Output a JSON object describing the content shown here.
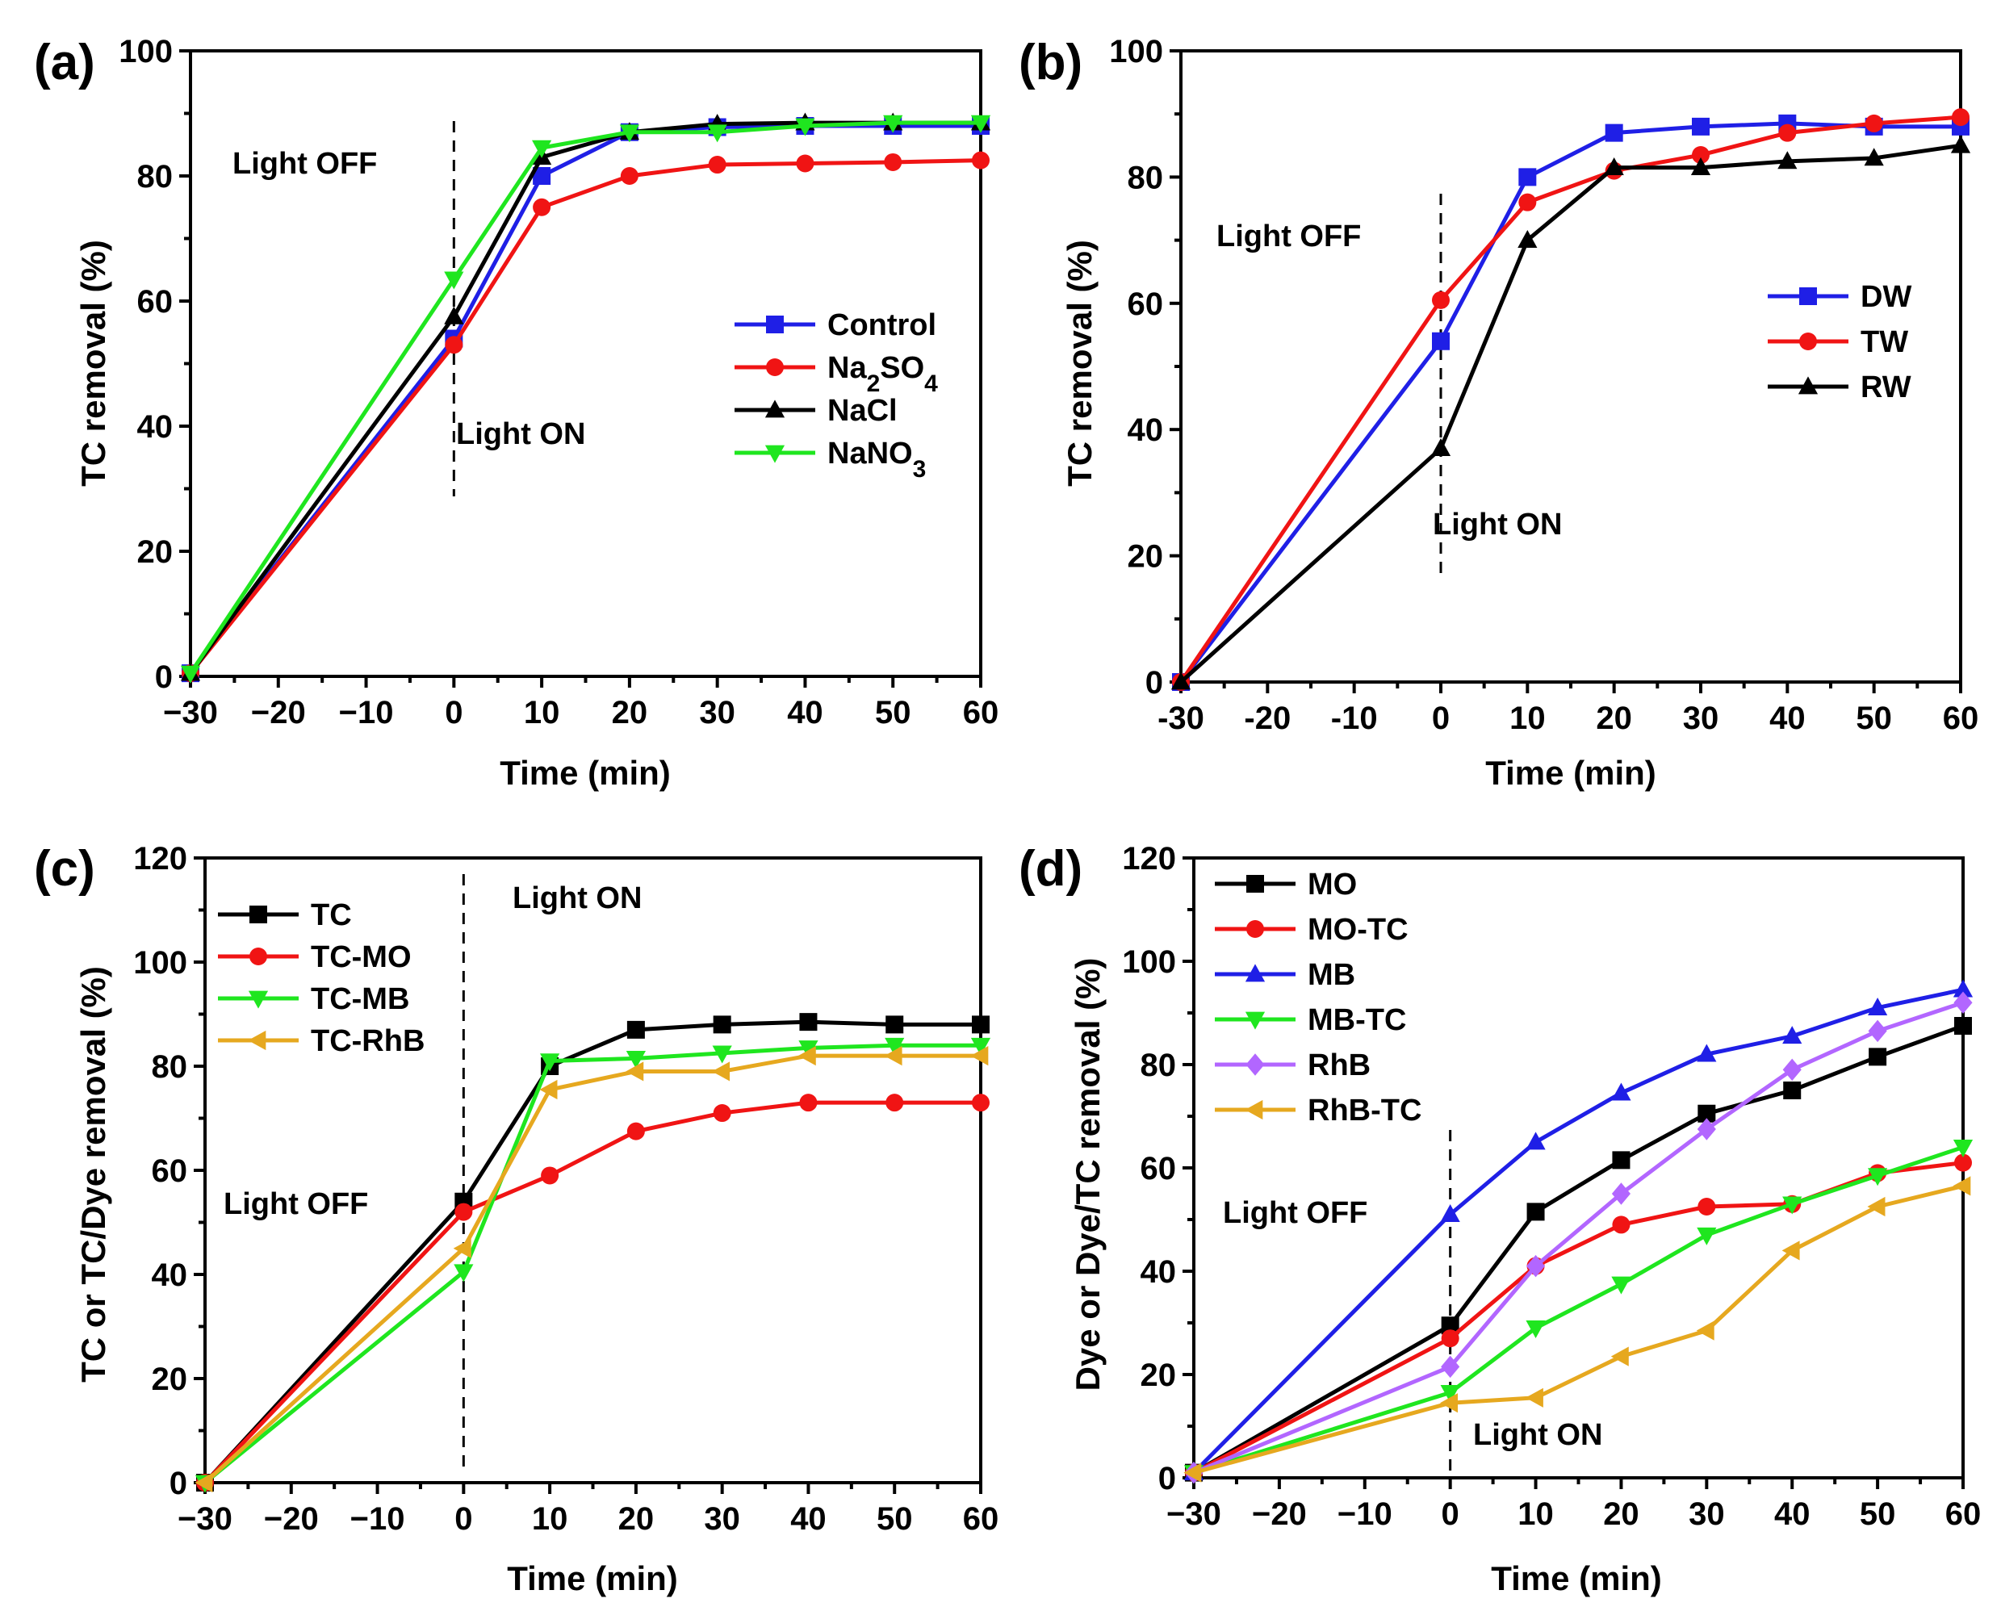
{
  "chart_data": [
    {
      "type": "line",
      "panel": "(a)",
      "xlabel": "Time (min)",
      "ylabel": "TC removal (%)",
      "xlim": [
        -30,
        60
      ],
      "ylim": [
        0,
        100
      ],
      "xticks": [
        "−30",
        "−20",
        "−10",
        "0",
        "10",
        "20",
        "30",
        "40",
        "50",
        "60"
      ],
      "yticks": [
        "0",
        "20",
        "40",
        "60",
        "80",
        "100"
      ],
      "x": [
        -30,
        0,
        10,
        20,
        30,
        40,
        50,
        60
      ],
      "legend_position": "center-right",
      "series": [
        {
          "name": "Control",
          "label_main": "Control",
          "label_sub": "",
          "label_tail": "",
          "label_sub2": "",
          "color": "#1f1fe6",
          "marker": "square",
          "values": [
            0.5,
            54.0,
            80.0,
            87.0,
            87.8,
            88.0,
            88.0,
            88.0
          ]
        },
        {
          "name": "Na2SO4",
          "label_main": "Na",
          "label_sub": "2",
          "label_tail": "SO",
          "label_sub2": "4",
          "color": "#f01414",
          "marker": "circle",
          "values": [
            0.5,
            53.0,
            75.0,
            80.0,
            81.8,
            82.0,
            82.2,
            82.5
          ]
        },
        {
          "name": "NaCl",
          "label_main": "NaCl",
          "label_sub": "",
          "label_tail": "",
          "label_sub2": "",
          "color": "#000000",
          "marker": "triangle-up",
          "values": [
            0.5,
            57.5,
            83.0,
            87.0,
            88.3,
            88.5,
            88.5,
            88.5
          ]
        },
        {
          "name": "NaNO3",
          "label_main": "NaNO",
          "label_sub": "3",
          "label_tail": "",
          "label_sub2": "",
          "color": "#1fe61f",
          "marker": "triangle-down",
          "values": [
            0.5,
            63.5,
            84.5,
            87.0,
            87.0,
            88.0,
            88.5,
            88.5
          ]
        }
      ],
      "annotations": {
        "light_off": "Light OFF",
        "light_on": "Light ON"
      }
    },
    {
      "type": "line",
      "panel": "(b)",
      "xlabel": "Time (min)",
      "ylabel": "TC removal (%)",
      "xlim": [
        -30,
        60
      ],
      "ylim": [
        0,
        100
      ],
      "xticks": [
        "-30",
        "-20",
        "-10",
        "0",
        "10",
        "20",
        "30",
        "40",
        "50",
        "60"
      ],
      "yticks": [
        "0",
        "20",
        "40",
        "60",
        "80",
        "100"
      ],
      "x": [
        -30,
        0,
        10,
        20,
        30,
        40,
        50,
        60
      ],
      "legend_position": "center-right",
      "series": [
        {
          "name": "DW",
          "label_main": "DW",
          "label_sub": "",
          "label_tail": "",
          "label_sub2": "",
          "color": "#1f1fe6",
          "marker": "square",
          "values": [
            0,
            54.0,
            80.0,
            87.0,
            88.0,
            88.5,
            88.0,
            88.0
          ]
        },
        {
          "name": "TW",
          "label_main": "TW",
          "label_sub": "",
          "label_tail": "",
          "label_sub2": "",
          "color": "#f01414",
          "marker": "circle",
          "values": [
            0,
            60.5,
            76.0,
            81.0,
            83.5,
            87.0,
            88.5,
            89.5
          ]
        },
        {
          "name": "RW",
          "label_main": "RW",
          "label_sub": "",
          "label_tail": "",
          "label_sub2": "",
          "color": "#000000",
          "marker": "triangle-up",
          "values": [
            0,
            37.0,
            70.0,
            81.5,
            81.5,
            82.5,
            83.0,
            85.0
          ]
        }
      ],
      "annotations": {
        "light_off": "Light OFF",
        "light_on": "Light ON"
      }
    },
    {
      "type": "line",
      "panel": "(c)",
      "xlabel": "Time (min)",
      "ylabel": "TC or TC/Dye removal (%)",
      "xlim": [
        -30,
        60
      ],
      "ylim": [
        0,
        120
      ],
      "xticks": [
        "−30",
        "−20",
        "−10",
        "0",
        "10",
        "20",
        "30",
        "40",
        "50",
        "60"
      ],
      "yticks": [
        "0",
        "20",
        "40",
        "60",
        "80",
        "100",
        "120"
      ],
      "x": [
        -30,
        0,
        10,
        20,
        30,
        40,
        50,
        60
      ],
      "legend_position": "top-left",
      "series": [
        {
          "name": "TC",
          "label_main": "TC",
          "label_sub": "",
          "label_tail": "",
          "label_sub2": "",
          "color": "#000000",
          "marker": "square",
          "values": [
            0,
            54.0,
            80.0,
            87.0,
            88.0,
            88.5,
            88.0,
            88.0
          ]
        },
        {
          "name": "TC-MO",
          "label_main": "TC-MO",
          "label_sub": "",
          "label_tail": "",
          "label_sub2": "",
          "color": "#f01414",
          "marker": "circle",
          "values": [
            0,
            52.0,
            59.0,
            67.5,
            71.0,
            73.0,
            73.0,
            73.0
          ]
        },
        {
          "name": "TC-MB",
          "label_main": "TC-MB",
          "label_sub": "",
          "label_tail": "",
          "label_sub2": "",
          "color": "#1fe61f",
          "marker": "triangle-down",
          "values": [
            0,
            40.5,
            81.0,
            81.5,
            82.5,
            83.5,
            84.0,
            84.0
          ]
        },
        {
          "name": "TC-RhB",
          "label_main": "TC-RhB",
          "label_sub": "",
          "label_tail": "",
          "label_sub2": "",
          "color": "#e6a81f",
          "marker": "triangle-left",
          "values": [
            0,
            45.0,
            75.5,
            79.0,
            79.0,
            82.0,
            82.0,
            82.0
          ]
        }
      ],
      "annotations": {
        "light_off": "Light OFF",
        "light_on": "Light ON"
      }
    },
    {
      "type": "line",
      "panel": "(d)",
      "xlabel": "Time (min)",
      "ylabel": "Dye or Dye/TC removal (%)",
      "xlim": [
        -30,
        60
      ],
      "ylim": [
        0,
        120
      ],
      "xticks": [
        "−30",
        "−20",
        "−10",
        "0",
        "10",
        "20",
        "30",
        "40",
        "50",
        "60"
      ],
      "yticks": [
        "0",
        "20",
        "40",
        "60",
        "80",
        "100",
        "120"
      ],
      "x": [
        -30,
        0,
        10,
        20,
        30,
        40,
        50,
        60
      ],
      "legend_position": "top-left",
      "series": [
        {
          "name": "MO",
          "label_main": "MO",
          "label_sub": "",
          "label_tail": "",
          "label_sub2": "",
          "color": "#000000",
          "marker": "square",
          "values": [
            1,
            29.5,
            51.5,
            61.5,
            70.5,
            75.0,
            81.5,
            87.5
          ]
        },
        {
          "name": "MO-TC",
          "label_main": "MO-TC",
          "label_sub": "",
          "label_tail": "",
          "label_sub2": "",
          "color": "#f01414",
          "marker": "circle",
          "values": [
            1,
            27.0,
            41.0,
            49.0,
            52.5,
            53.0,
            59.0,
            61.0
          ]
        },
        {
          "name": "MB",
          "label_main": "MB",
          "label_sub": "",
          "label_tail": "",
          "label_sub2": "",
          "color": "#1f1fe6",
          "marker": "triangle-up",
          "values": [
            1,
            51.0,
            65.0,
            74.5,
            82.0,
            85.5,
            91.0,
            94.5
          ]
        },
        {
          "name": "MB-TC",
          "label_main": "MB-TC",
          "label_sub": "",
          "label_tail": "",
          "label_sub2": "",
          "color": "#1fe61f",
          "marker": "triangle-down",
          "values": [
            1,
            16.5,
            29.0,
            37.5,
            47.0,
            53.0,
            58.5,
            64.0
          ]
        },
        {
          "name": "RhB",
          "label_main": "RhB",
          "label_sub": "",
          "label_tail": "",
          "label_sub2": "",
          "color": "#b266ff",
          "marker": "diamond",
          "values": [
            1,
            21.5,
            41.0,
            55.0,
            67.5,
            79.0,
            86.5,
            92.0
          ]
        },
        {
          "name": "RhB-TC",
          "label_main": "RhB-TC",
          "label_sub": "",
          "label_tail": "",
          "label_sub2": "",
          "color": "#e6a81f",
          "marker": "triangle-left",
          "values": [
            1,
            14.5,
            15.5,
            23.5,
            28.5,
            44.0,
            52.5,
            56.5
          ]
        }
      ],
      "annotations": {
        "light_off": "Light OFF",
        "light_on": "Light ON"
      }
    }
  ]
}
